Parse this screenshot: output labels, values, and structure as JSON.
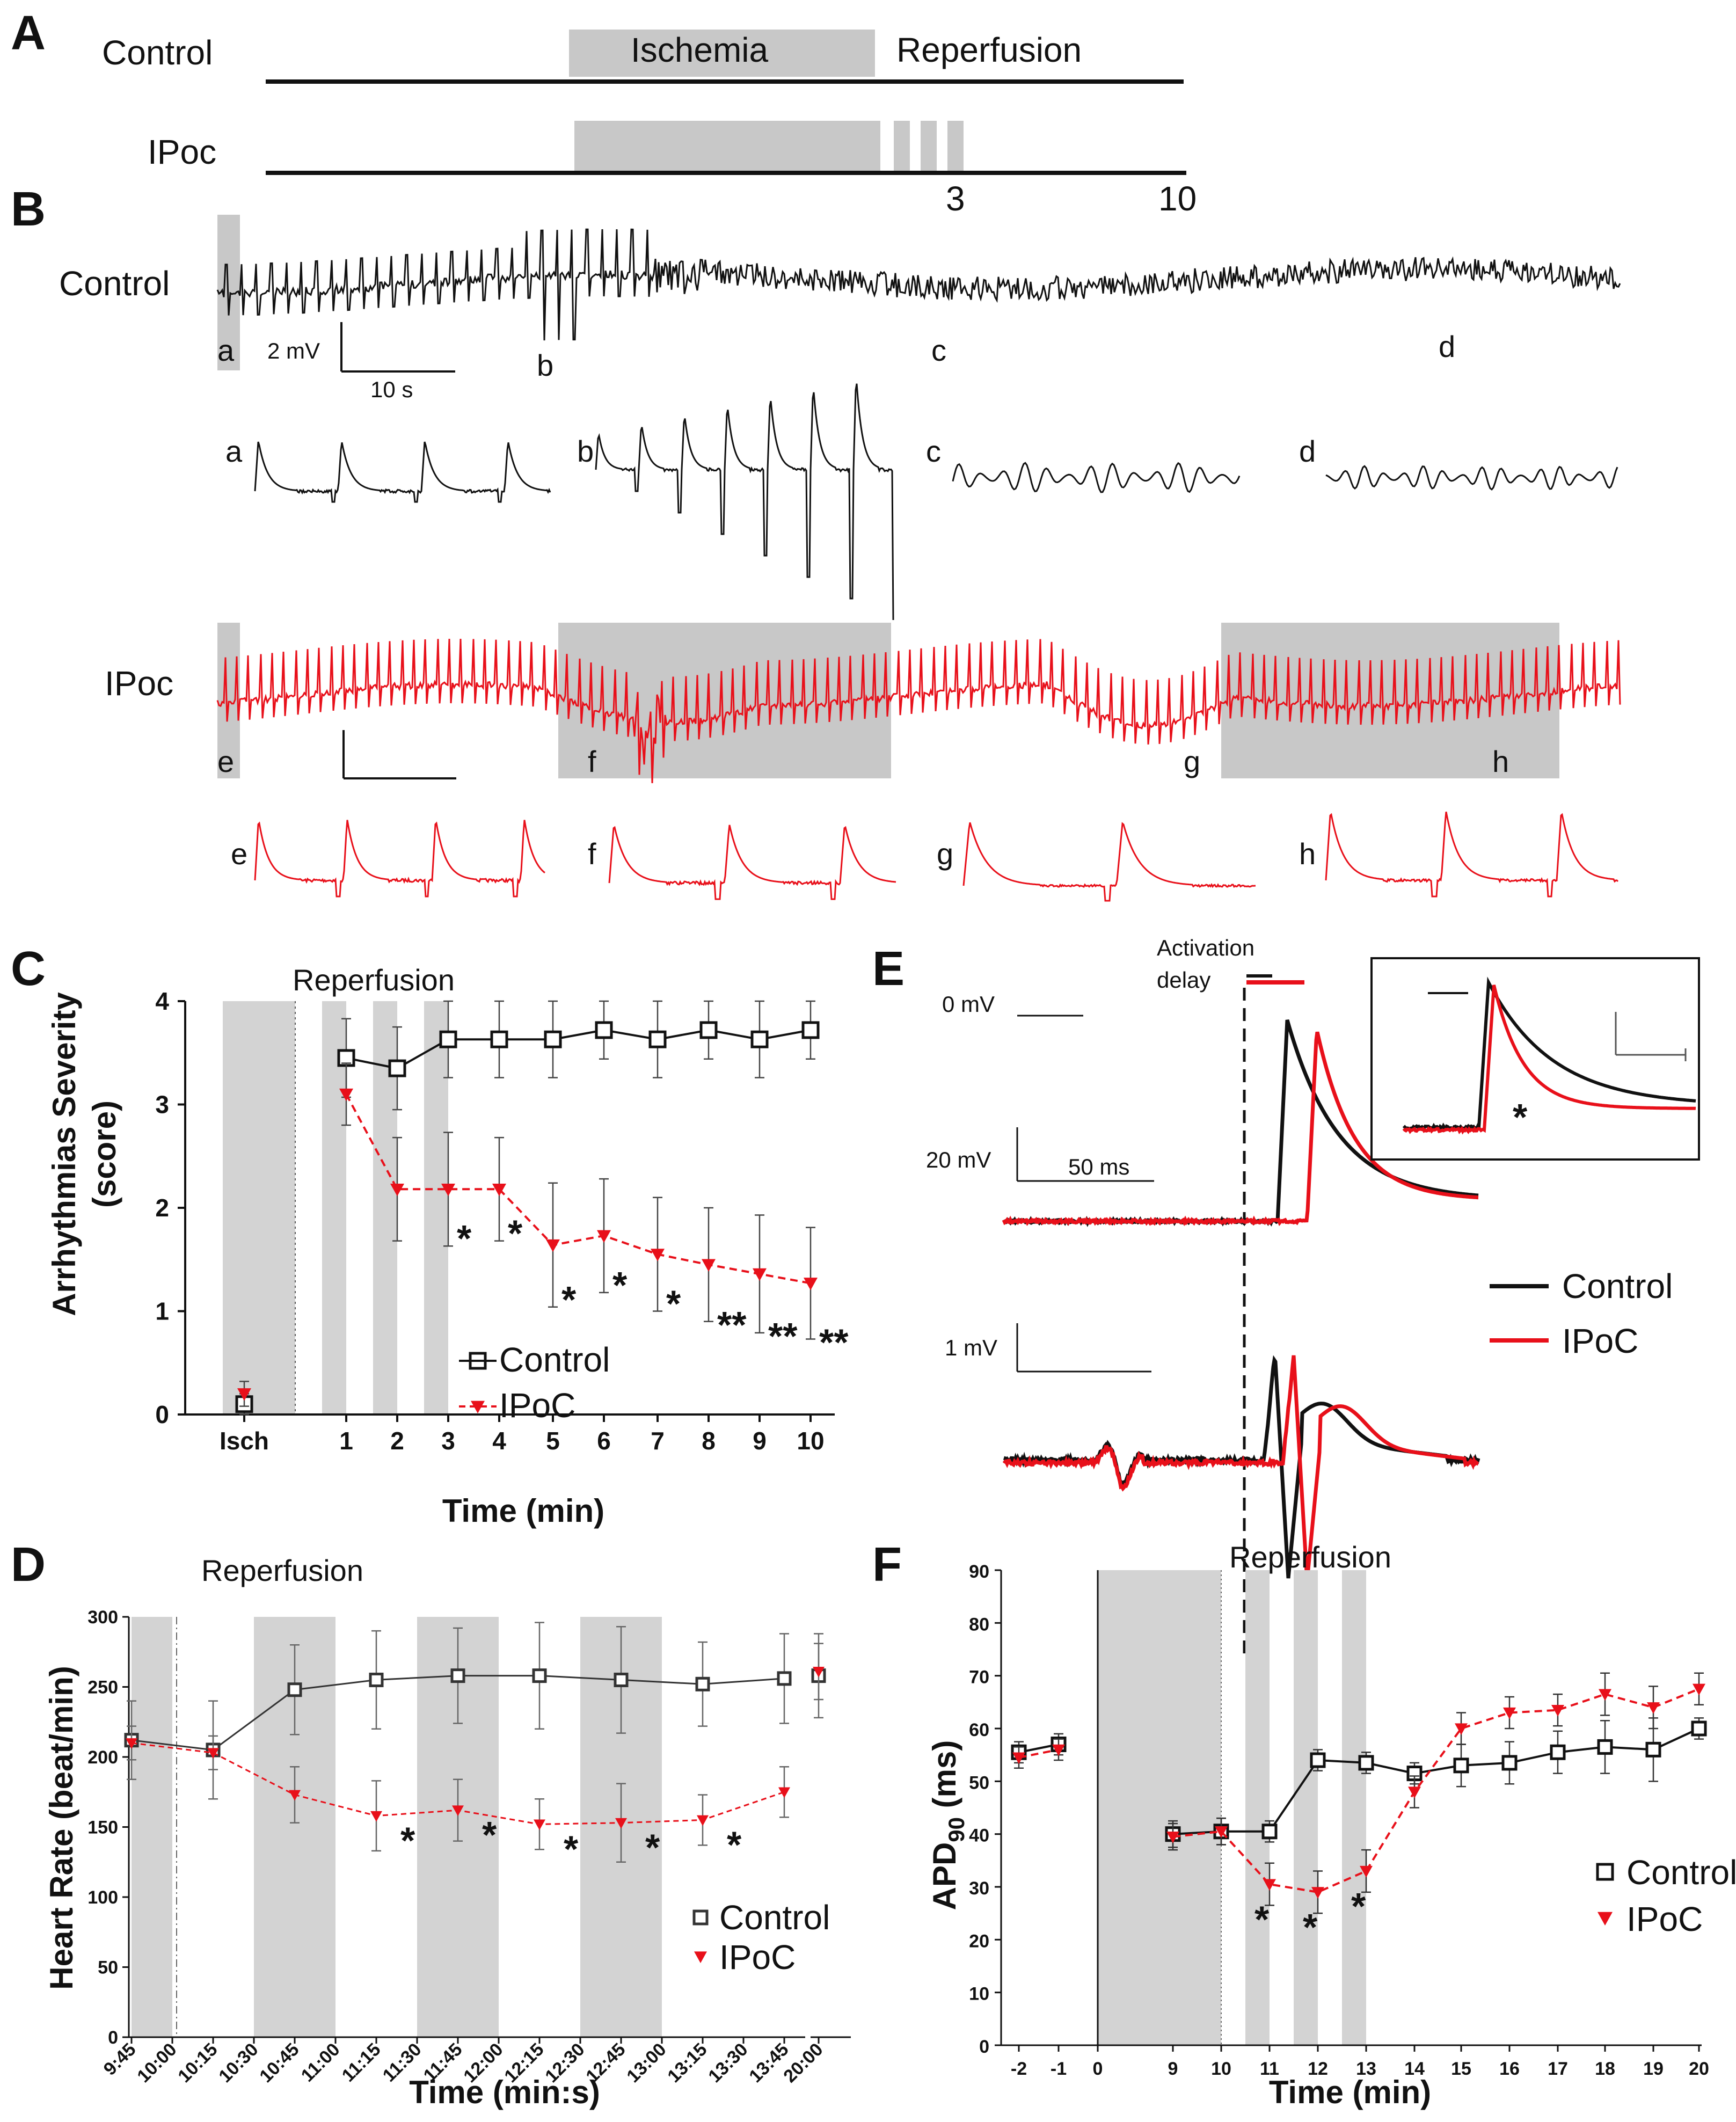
{
  "colors": {
    "control": "#111111",
    "ipoc": "#e8101a",
    "shade": "#d3d3d3"
  },
  "panel_a": {
    "label": "A",
    "rows": [
      "Control",
      "IPoc"
    ],
    "ischemia_label": "Ischemia",
    "reperfusion_label": "Reperfusion",
    "time_marks": [
      "3",
      "10"
    ]
  },
  "panel_b": {
    "label": "B",
    "control_label": "Control",
    "ipoc_label": "IPoc",
    "scale_mv": "2 mV",
    "scale_s": "10 s",
    "control_markers": [
      "a",
      "b",
      "c",
      "d"
    ],
    "ipoc_markers": [
      "e",
      "f",
      "g",
      "h"
    ]
  },
  "panel_e": {
    "label": "E",
    "activation_delay": [
      "Activation",
      "delay"
    ],
    "scale_0mv": "0 mV",
    "scale_20mv": "20 mV",
    "scale_50ms": "50 ms",
    "scale_1mv": "1 mV",
    "legend": [
      "Control",
      "IPoC"
    ],
    "inset_star": "*"
  },
  "chart_data": [
    {
      "id": "C",
      "type": "line",
      "panel_label": "C",
      "annotation": "Reperfusion",
      "xlabel": "Time (min)",
      "ylabel_lines": [
        "Arrhythmias Severity",
        "(score)"
      ],
      "ylim": [
        0,
        4
      ],
      "yticks": [
        "0",
        "1",
        "2",
        "3",
        "4"
      ],
      "categories": [
        "Isch",
        "1",
        "2",
        "3",
        "4",
        "5",
        "6",
        "7",
        "8",
        "9",
        "10"
      ],
      "series": [
        {
          "name": "Control",
          "values": [
            0.1,
            3.45,
            3.35,
            3.63,
            3.63,
            3.63,
            3.72,
            3.63,
            3.72,
            3.63,
            3.72
          ],
          "errors": [
            0.1,
            0.38,
            0.4,
            0.37,
            0.37,
            0.37,
            0.28,
            0.37,
            0.28,
            0.37,
            0.28
          ]
        },
        {
          "name": "IPoC",
          "values": [
            0.2,
            3.1,
            2.18,
            2.18,
            2.18,
            1.64,
            1.73,
            1.55,
            1.45,
            1.36,
            1.27
          ],
          "errors": [
            0.12,
            0.3,
            0.5,
            0.55,
            0.5,
            0.6,
            0.55,
            0.55,
            0.55,
            0.57,
            0.54
          ]
        }
      ],
      "significance": [
        "",
        "",
        "",
        "*",
        "*",
        "*",
        "*",
        "*",
        "**",
        "**",
        "**"
      ],
      "legend": [
        "Control",
        "IPoC"
      ]
    },
    {
      "id": "D",
      "type": "line",
      "panel_label": "D",
      "annotation": "Reperfusion",
      "xlabel": "Time (min:s)",
      "ylabel": "Heart Rate (beat/min)",
      "ylim": [
        0,
        300
      ],
      "yticks": [
        "0",
        "50",
        "100",
        "150",
        "200",
        "250",
        "300"
      ],
      "categories": [
        "9:45",
        "10:00",
        "10:15",
        "10:30",
        "10:45",
        "11:00",
        "11:15",
        "11:30",
        "11:45",
        "12:00",
        "12:15",
        "12:30",
        "12:45",
        "13:00",
        "13:15",
        "13:30",
        "13:45",
        "20:00"
      ],
      "series": [
        {
          "name": "Control",
          "x": [
            "9:45",
            "10:15",
            "10:45",
            "11:15",
            "11:45",
            "12:15",
            "12:45",
            "13:15",
            "13:45",
            "20:00"
          ],
          "values": [
            212,
            205,
            248,
            255,
            258,
            258,
            255,
            252,
            256,
            258
          ],
          "errors": [
            28,
            35,
            32,
            35,
            34,
            38,
            38,
            30,
            32,
            30
          ]
        },
        {
          "name": "IPoC",
          "x": [
            "9:45",
            "10:15",
            "10:45",
            "11:15",
            "11:45",
            "12:15",
            "12:45",
            "13:15",
            "13:45",
            "20:00"
          ],
          "values": [
            210,
            203,
            173,
            158,
            162,
            152,
            153,
            155,
            175,
            261
          ],
          "errors": [
            12,
            12,
            20,
            25,
            22,
            18,
            28,
            18,
            18,
            20
          ]
        }
      ],
      "significance_at": [
        "11:15",
        "11:45",
        "12:15",
        "12:45",
        "13:15"
      ],
      "star": "*",
      "legend": [
        "Control",
        "IPoC"
      ]
    },
    {
      "id": "F",
      "type": "line",
      "panel_label": "F",
      "annotation": "Reperfusion",
      "xlabel": "Time (min)",
      "ylabel": "APD",
      "ylabel_sub": "90",
      "ylabel_unit": " (ms)",
      "ylim": [
        0,
        90
      ],
      "yticks": [
        "0",
        "10",
        "20",
        "30",
        "40",
        "50",
        "60",
        "70",
        "80",
        "90"
      ],
      "xticks": [
        "-2",
        "-1",
        "0",
        "9",
        "10",
        "11",
        "12",
        "13",
        "14",
        "15",
        "16",
        "17",
        "18",
        "19",
        "20"
      ],
      "series": [
        {
          "name": "Control",
          "x": [
            "-2",
            "-1",
            "9",
            "10",
            "11",
            "12",
            "13",
            "14",
            "15",
            "16",
            "17",
            "18",
            "19",
            "20"
          ],
          "values": [
            55.5,
            57,
            40,
            40.5,
            40.5,
            54,
            53.5,
            51.5,
            53,
            53.5,
            55.5,
            56.5,
            56,
            60
          ],
          "errors": [
            2,
            2,
            2.5,
            2.5,
            2,
            2,
            2,
            2,
            4,
            4,
            4,
            5,
            6,
            2
          ]
        },
        {
          "name": "IPoC",
          "x": [
            "-2",
            "-1",
            "9",
            "10",
            "11",
            "12",
            "13",
            "14",
            "15",
            "16",
            "17",
            "18",
            "19",
            "20"
          ],
          "values": [
            54.5,
            56,
            39.5,
            40.5,
            30.5,
            29,
            33,
            48,
            60,
            63,
            63.5,
            66.5,
            64,
            67.5
          ],
          "errors": [
            2,
            2,
            2.5,
            2.5,
            4,
            4,
            4,
            3,
            3,
            3,
            3,
            4,
            4,
            3
          ]
        }
      ],
      "significance_at": [
        "11",
        "12",
        "13"
      ],
      "star": "*",
      "legend": [
        "Control",
        "IPoC"
      ]
    }
  ]
}
